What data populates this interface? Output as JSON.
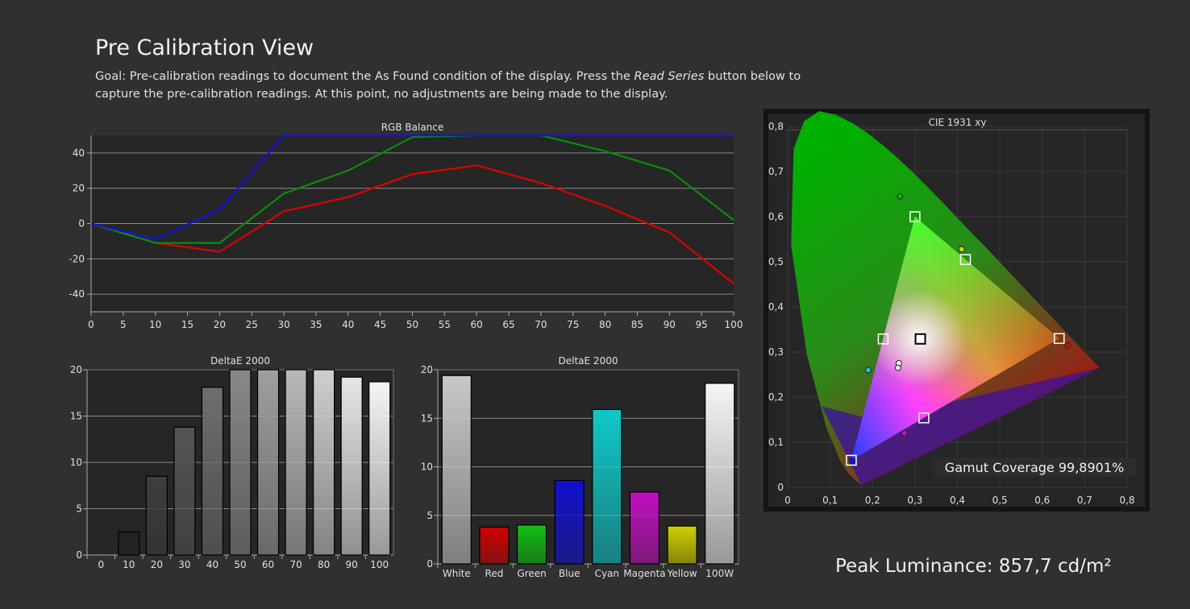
{
  "header": {
    "title": "Pre Calibration View",
    "desc_part1": "Goal: Pre-calibration readings to document the As Found condition of the display. Press the ",
    "desc_emphasis": "Read Series",
    "desc_part2": " button below to capture the pre-calibration readings. At this point, no adjustments are being made to the display."
  },
  "peak": {
    "label": "Peak Luminance: 857,7 cd/m²"
  },
  "colors": {
    "red": "#e00000",
    "green": "#0a8c0a",
    "blue": "#1212e6",
    "background": "#303030",
    "plot_bg": "#262626"
  },
  "chart_data": [
    {
      "id": "rgb",
      "type": "line",
      "title": "RGB Balance",
      "x": [
        0,
        10,
        20,
        30,
        40,
        50,
        60,
        70,
        80,
        90,
        100
      ],
      "xticks": [
        0,
        5,
        10,
        15,
        20,
        25,
        30,
        35,
        40,
        45,
        50,
        55,
        60,
        65,
        70,
        75,
        80,
        85,
        90,
        95,
        100
      ],
      "yticks": [
        -40,
        -20,
        0,
        20,
        40
      ],
      "xlim": [
        0,
        100
      ],
      "ylim": [
        -50,
        50
      ],
      "grid": true,
      "series": [
        {
          "color": "#e00000",
          "values": [
            0,
            -11,
            -16,
            7,
            15,
            28,
            33,
            23,
            10,
            -5,
            -34
          ]
        },
        {
          "color": "#0a8c0a",
          "values": [
            0,
            -11,
            -11,
            17,
            30,
            49,
            50,
            50,
            41,
            30,
            2
          ]
        },
        {
          "color": "#1212e6",
          "values": [
            0,
            -9,
            8,
            50,
            50,
            50,
            50,
            50,
            50,
            50,
            50
          ]
        }
      ]
    },
    {
      "id": "de_gray",
      "type": "bar",
      "title": "DeltaE 2000",
      "categories": [
        "0",
        "10",
        "20",
        "30",
        "40",
        "50",
        "60",
        "70",
        "80",
        "90",
        "100"
      ],
      "values": [
        0,
        2.5,
        8.5,
        13.8,
        18.1,
        20,
        20,
        20,
        20,
        19.2,
        18.7
      ],
      "bar_colors": [
        "#000000",
        "#222222",
        "#3e3e3e",
        "#555555",
        "#6e6e6e",
        "#888888",
        "#a0a0a0",
        "#b8b8b8",
        "#cfcfcf",
        "#e6e6e6",
        "#f5f5f5"
      ],
      "yticks": [
        0,
        5,
        10,
        15,
        20
      ],
      "ylim": [
        0,
        20
      ],
      "grid": true
    },
    {
      "id": "de_color",
      "type": "bar",
      "title": "DeltaE 2000",
      "categories": [
        "White",
        "Red",
        "Green",
        "Blue",
        "Cyan",
        "Magenta",
        "Yellow",
        "100W"
      ],
      "values": [
        19.4,
        3.8,
        4.0,
        8.6,
        15.9,
        7.4,
        3.9,
        18.6
      ],
      "bar_colors": [
        "#c8c8c8",
        "#d00000",
        "#10c010",
        "#1010d0",
        "#10c8c8",
        "#c010c0",
        "#d0d000",
        "#f5f5f5"
      ],
      "yticks": [
        0,
        5,
        10,
        15,
        20
      ],
      "ylim": [
        0,
        20
      ],
      "grid": true
    },
    {
      "id": "cie",
      "type": "scatter",
      "title": "CIE 1931 xy",
      "xticks": [
        "0",
        "0,1",
        "0,2",
        "0,3",
        "0,4",
        "0,5",
        "0,6",
        "0,7",
        "0,8"
      ],
      "yticks": [
        "0",
        "0,1",
        "0,2",
        "0,3",
        "0,4",
        "0,5",
        "0,6",
        "0,7",
        "0,8"
      ],
      "xlim": [
        0,
        0.8
      ],
      "ylim": [
        0,
        0.8
      ],
      "grid": true,
      "targets": [
        {
          "name": "red",
          "x": 0.64,
          "y": 0.33
        },
        {
          "name": "green",
          "x": 0.3,
          "y": 0.6
        },
        {
          "name": "blue",
          "x": 0.15,
          "y": 0.06
        },
        {
          "name": "cyan",
          "x": 0.225,
          "y": 0.329
        },
        {
          "name": "magenta",
          "x": 0.321,
          "y": 0.154
        },
        {
          "name": "yellow",
          "x": 0.419,
          "y": 0.505
        },
        {
          "name": "white",
          "x": 0.3127,
          "y": 0.329
        }
      ],
      "measured": [
        {
          "name": "red",
          "x": 0.66,
          "y": 0.315,
          "color": "#d01010"
        },
        {
          "name": "green",
          "x": 0.265,
          "y": 0.645,
          "color": "#10b010"
        },
        {
          "name": "blue",
          "x": 0.152,
          "y": 0.058,
          "color": "#1010ff"
        },
        {
          "name": "cyan",
          "x": 0.19,
          "y": 0.26,
          "color": "#10c8c8"
        },
        {
          "name": "magenta",
          "x": 0.275,
          "y": 0.12,
          "color": "#c010c0"
        },
        {
          "name": "yellow",
          "x": 0.41,
          "y": 0.528,
          "color": "#d0d010"
        },
        {
          "name": "white",
          "x": 0.262,
          "y": 0.275,
          "color": "#ffffff"
        },
        {
          "name": "100w",
          "x": 0.26,
          "y": 0.265,
          "color": "#e0e0e0"
        }
      ],
      "annotation": "Gamut Coverage 99,8901%"
    }
  ]
}
